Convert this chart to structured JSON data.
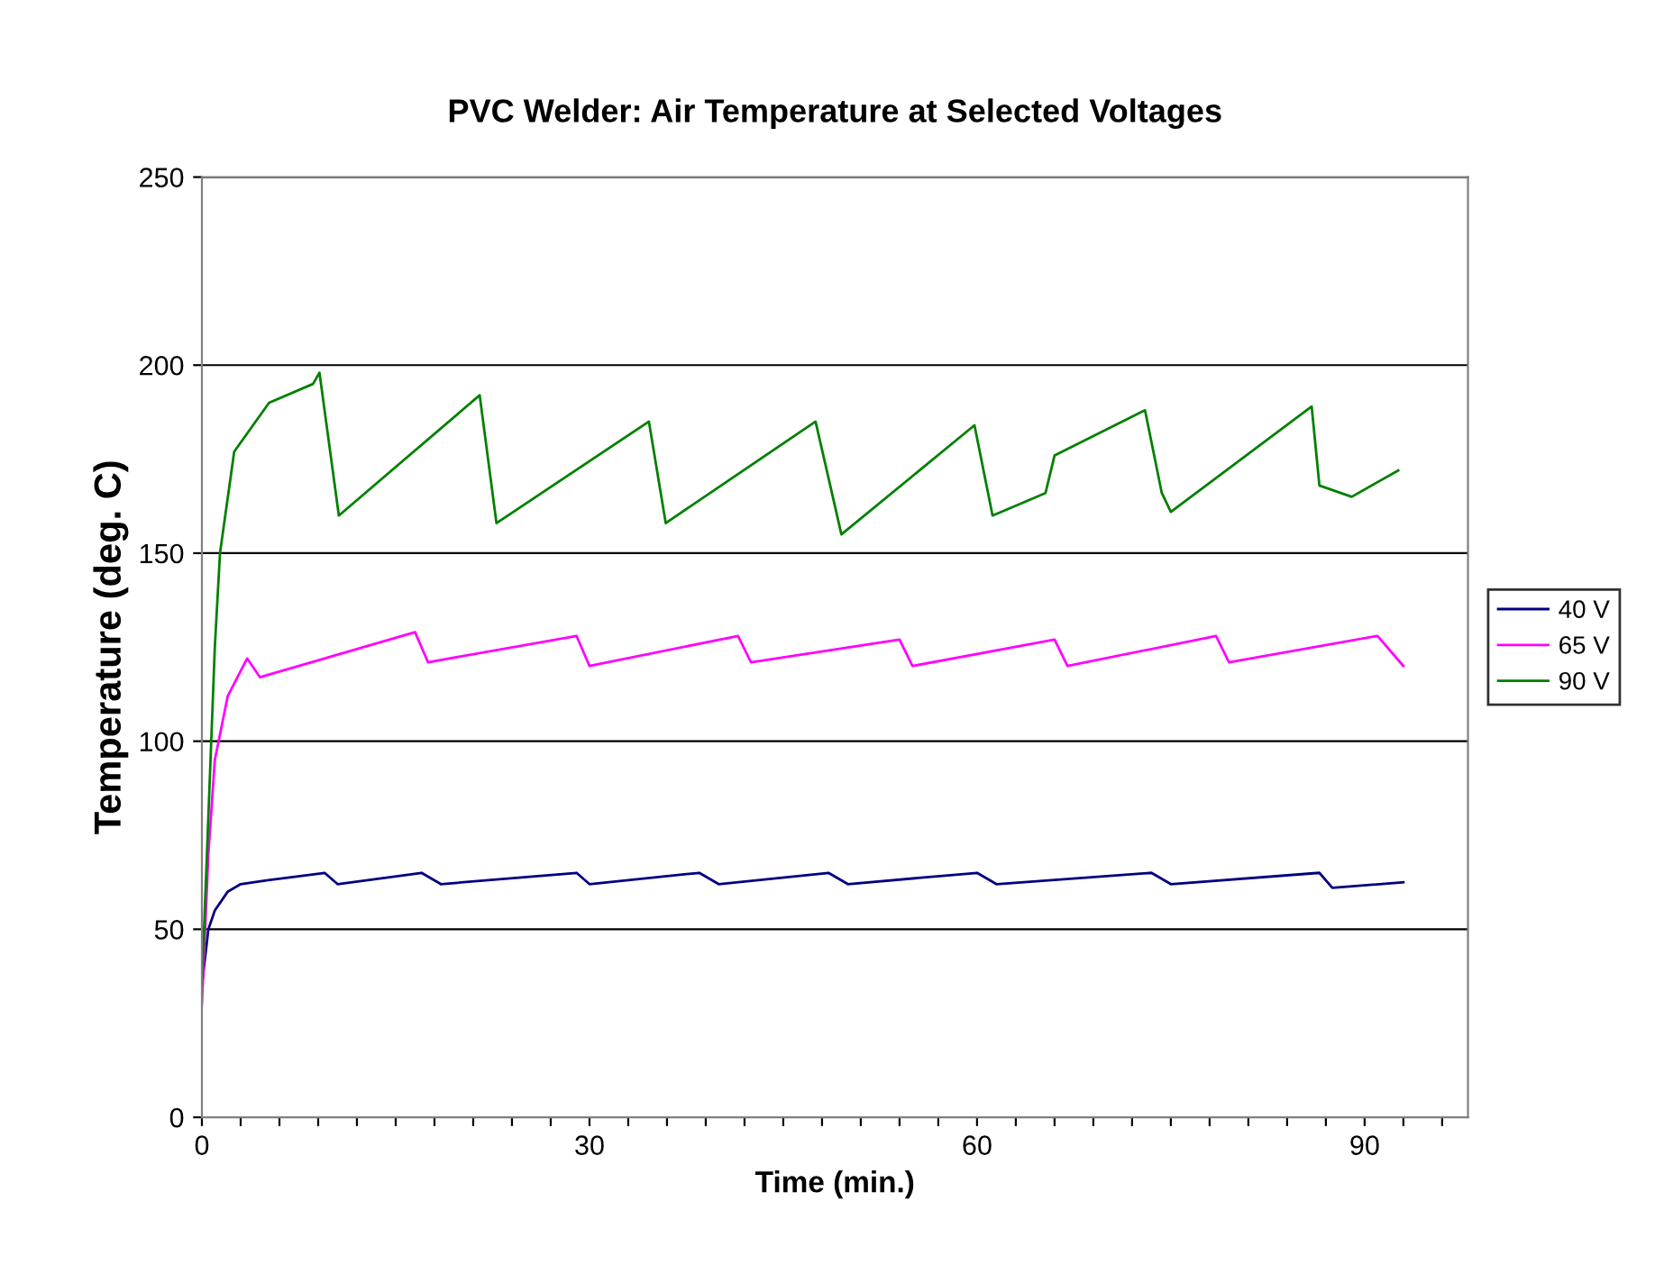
{
  "chart_data": {
    "type": "line",
    "title": "PVC Welder: Air Temperature at Selected Voltages",
    "xlabel": "Time (min.)",
    "ylabel": "Temperature (deg. C)",
    "xlim": [
      0,
      98
    ],
    "ylim": [
      0,
      250
    ],
    "yticks": [
      0,
      50,
      100,
      150,
      200,
      250
    ],
    "xticks": [
      0,
      {
        "value": 3,
        "label": null
      },
      {
        "value": 6,
        "label": null
      },
      {
        "value": 9,
        "label": null
      },
      {
        "value": 12,
        "label": null
      },
      {
        "value": 15,
        "label": null
      },
      {
        "value": 18,
        "label": null
      },
      {
        "value": 21,
        "label": null
      },
      {
        "value": 24,
        "label": null
      },
      {
        "value": 27,
        "label": null
      },
      30,
      {
        "value": 33,
        "label": null
      },
      {
        "value": 36,
        "label": null
      },
      {
        "value": 39,
        "label": null
      },
      {
        "value": 42,
        "label": null
      },
      {
        "value": 45,
        "label": null
      },
      {
        "value": 48,
        "label": null
      },
      {
        "value": 51,
        "label": null
      },
      {
        "value": 54,
        "label": null
      },
      {
        "value": 57,
        "label": null
      },
      60,
      {
        "value": 63,
        "label": null
      },
      {
        "value": 66,
        "label": null
      },
      {
        "value": 69,
        "label": null
      },
      {
        "value": 72,
        "label": null
      },
      {
        "value": 75,
        "label": null
      },
      {
        "value": 78,
        "label": null
      },
      {
        "value": 81,
        "label": null
      },
      {
        "value": 84,
        "label": null
      },
      {
        "value": 87,
        "label": null
      },
      90,
      {
        "value": 93,
        "label": null
      },
      {
        "value": 96,
        "label": null
      }
    ],
    "grid": "y",
    "legend": "right",
    "marker": "none",
    "line_style": "solid",
    "series": [
      {
        "name": "40 V",
        "color": "#000080",
        "x": [
          0,
          0.5,
          1,
          2,
          3,
          5,
          9.5,
          10.5,
          17,
          18.5,
          29,
          30,
          38.5,
          40,
          48.5,
          50,
          60,
          61.5,
          73.5,
          75,
          86.5,
          87.5,
          93
        ],
        "values": [
          35,
          50,
          55,
          60,
          62,
          63,
          65,
          62,
          65,
          62,
          65,
          62,
          65,
          62,
          65,
          62,
          65,
          62,
          65,
          62,
          65,
          61,
          62.5
        ]
      },
      {
        "name": "65 V",
        "color": "#ff00ff",
        "x": [
          0,
          0.5,
          1,
          2,
          3.5,
          4.5,
          16.5,
          17.5,
          29,
          30,
          41.5,
          42.5,
          54,
          55,
          66,
          67,
          78.5,
          79.5,
          91,
          93
        ],
        "values": [
          30,
          70,
          95,
          112,
          122,
          117,
          129,
          121,
          128,
          120,
          128,
          121,
          127,
          120,
          127,
          120,
          128,
          121,
          128,
          120
        ]
      },
      {
        "name": "90 V",
        "color": "#008000",
        "x": [
          0,
          0.5,
          1,
          1.4,
          2.5,
          5.2,
          8.6,
          9.1,
          10.6,
          21.5,
          22.8,
          34.6,
          35.9,
          47.5,
          49.5,
          59.8,
          61.2,
          65.3,
          66,
          73,
          74.3,
          75,
          85.9,
          86.5,
          89,
          92.6
        ],
        "values": [
          35,
          80,
          125,
          150,
          177,
          190,
          195,
          198,
          160,
          192,
          158,
          185,
          158,
          185,
          155,
          184,
          160,
          166,
          176,
          188,
          166,
          161,
          189,
          168,
          165,
          172
        ]
      }
    ]
  }
}
